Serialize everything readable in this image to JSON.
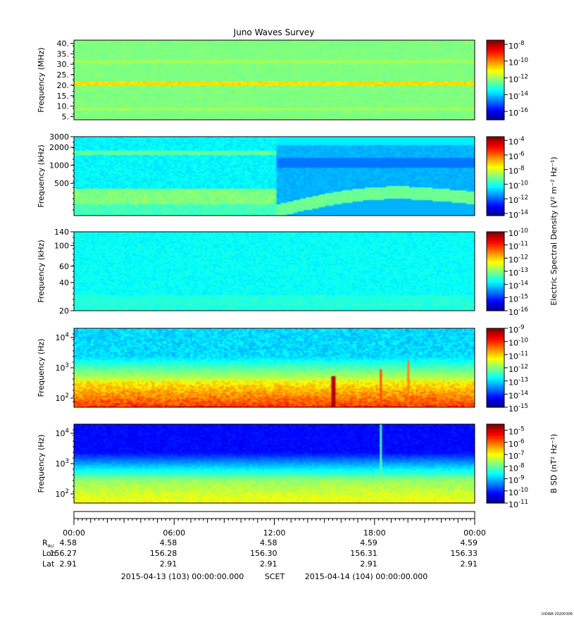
{
  "title": "Juno Waves Survey",
  "watermark": "UIOWA 20200306",
  "colors": {
    "frame": "#000000",
    "background": "#ffffff"
  },
  "chart_data": [
    {
      "type": "heatmap",
      "ylabel": "Frequency (MHz)",
      "yscale": "linear",
      "ylim": [
        3.5,
        41.5
      ],
      "yticks": [
        {
          "v": 5,
          "label": "5."
        },
        {
          "v": 10,
          "label": "10."
        },
        {
          "v": 15,
          "label": "15."
        },
        {
          "v": 20,
          "label": "20."
        },
        {
          "v": 25,
          "label": "25."
        },
        {
          "v": 30,
          "label": "30."
        },
        {
          "v": 35,
          "label": "35."
        },
        {
          "v": 40,
          "label": "40."
        }
      ],
      "colorbar_label": "",
      "colorbar_ticks": [
        {
          "v": -8,
          "label": "10",
          "exp": "-8"
        },
        {
          "v": -10,
          "label": "10",
          "exp": "-10"
        },
        {
          "v": -12,
          "label": "10",
          "exp": "-12"
        },
        {
          "v": -14,
          "label": "10",
          "exp": "-14"
        },
        {
          "v": -16,
          "label": "10",
          "exp": "-16"
        }
      ],
      "colorbar_range": [
        -17,
        -7.5
      ]
    },
    {
      "type": "heatmap",
      "ylabel": "Frequency (kHz)",
      "yscale": "log",
      "ylim": [
        145,
        3000
      ],
      "yticks": [
        {
          "v": 500,
          "label": "500"
        },
        {
          "v": 1000,
          "label": "1000"
        },
        {
          "v": 2000,
          "label": "2000"
        },
        {
          "v": 3000,
          "label": "3000"
        }
      ],
      "colorbar_label": "",
      "colorbar_ticks": [
        {
          "v": -4,
          "label": "10",
          "exp": "-4"
        },
        {
          "v": -6,
          "label": "10",
          "exp": "-6"
        },
        {
          "v": -8,
          "label": "10",
          "exp": "-8"
        },
        {
          "v": -10,
          "label": "10",
          "exp": "-10"
        },
        {
          "v": -12,
          "label": "10",
          "exp": "-12"
        },
        {
          "v": -14,
          "label": "10",
          "exp": "-14"
        }
      ],
      "colorbar_range": [
        -14.3,
        -3.5
      ]
    },
    {
      "type": "heatmap",
      "ylabel": "Frequency (kHz)",
      "yscale": "log",
      "ylim": [
        20,
        140
      ],
      "yticks": [
        {
          "v": 20,
          "label": "20"
        },
        {
          "v": 40,
          "label": "40"
        },
        {
          "v": 60,
          "label": "60"
        },
        {
          "v": 100,
          "label": "100"
        },
        {
          "v": 140,
          "label": "140"
        }
      ],
      "colorbar_label": "Electric Spectral Density (V² m⁻² Hz⁻¹)",
      "colorbar_ticks": [
        {
          "v": -10,
          "label": "10",
          "exp": "-10"
        },
        {
          "v": -11,
          "label": "10",
          "exp": "-11"
        },
        {
          "v": -12,
          "label": "10",
          "exp": "-12"
        },
        {
          "v": -13,
          "label": "10",
          "exp": "-13"
        },
        {
          "v": -14,
          "label": "10",
          "exp": "-14"
        },
        {
          "v": -15,
          "label": "10",
          "exp": "-15"
        },
        {
          "v": -16,
          "label": "10",
          "exp": "-16"
        }
      ],
      "colorbar_range": [
        -16,
        -10
      ]
    },
    {
      "type": "heatmap",
      "ylabel": "Frequency (Hz)",
      "yscale": "log",
      "ylim": [
        50,
        20000
      ],
      "yticks": [
        {
          "v": 100,
          "label": "10",
          "exp": "2"
        },
        {
          "v": 1000,
          "label": "10",
          "exp": "3"
        },
        {
          "v": 10000,
          "label": "10",
          "exp": "4"
        }
      ],
      "colorbar_label": "",
      "colorbar_ticks": [
        {
          "v": -9,
          "label": "10",
          "exp": "-9"
        },
        {
          "v": -10,
          "label": "10",
          "exp": "-10"
        },
        {
          "v": -11,
          "label": "10",
          "exp": "-11"
        },
        {
          "v": -12,
          "label": "10",
          "exp": "-12"
        },
        {
          "v": -13,
          "label": "10",
          "exp": "-13"
        },
        {
          "v": -14,
          "label": "10",
          "exp": "-14"
        },
        {
          "v": -15,
          "label": "10",
          "exp": "-15"
        }
      ],
      "colorbar_range": [
        -15,
        -9
      ]
    },
    {
      "type": "heatmap",
      "ylabel": "Frequency (Hz)",
      "yscale": "log",
      "ylim": [
        50,
        20000
      ],
      "yticks": [
        {
          "v": 100,
          "label": "10",
          "exp": "2"
        },
        {
          "v": 1000,
          "label": "10",
          "exp": "3"
        },
        {
          "v": 10000,
          "label": "10",
          "exp": "4"
        }
      ],
      "colorbar_label": "B SD (nT² Hz⁻¹)",
      "colorbar_ticks": [
        {
          "v": -5,
          "label": "10",
          "exp": "-5"
        },
        {
          "v": -6,
          "label": "10",
          "exp": "-6"
        },
        {
          "v": -7,
          "label": "10",
          "exp": "-7"
        },
        {
          "v": -8,
          "label": "10",
          "exp": "-8"
        },
        {
          "v": -9,
          "label": "10",
          "exp": "-9"
        },
        {
          "v": -10,
          "label": "10",
          "exp": "-10"
        },
        {
          "v": -11,
          "label": "10",
          "exp": "-11"
        }
      ],
      "colorbar_range": [
        -11,
        -4.5
      ]
    }
  ],
  "time_axis": {
    "range_hours": [
      0,
      24
    ],
    "major_ticks": [
      {
        "h": 0,
        "label": "00:00"
      },
      {
        "h": 6,
        "label": "06:00"
      },
      {
        "h": 12,
        "label": "12:00"
      },
      {
        "h": 18,
        "label": "18:00"
      },
      {
        "h": 24,
        "label": "00:00"
      }
    ],
    "rows": [
      {
        "label": "R",
        "sub": "AU",
        "values": [
          "4.58",
          "4.58",
          "4.58",
          "4.59",
          "4.59"
        ]
      },
      {
        "label": "Lon",
        "sub": "",
        "values": [
          "156.27",
          "156.28",
          "156.30",
          "156.31",
          "156.33"
        ]
      },
      {
        "label": "Lat",
        "sub": "",
        "values": [
          "2.91",
          "2.91",
          "2.91",
          "2.91",
          "2.91"
        ]
      }
    ],
    "footer_left": "2015-04-13 (103) 00:00:00.000",
    "footer_mid": "SCET",
    "footer_right": "2015-04-14 (104) 00:00:00.000"
  }
}
